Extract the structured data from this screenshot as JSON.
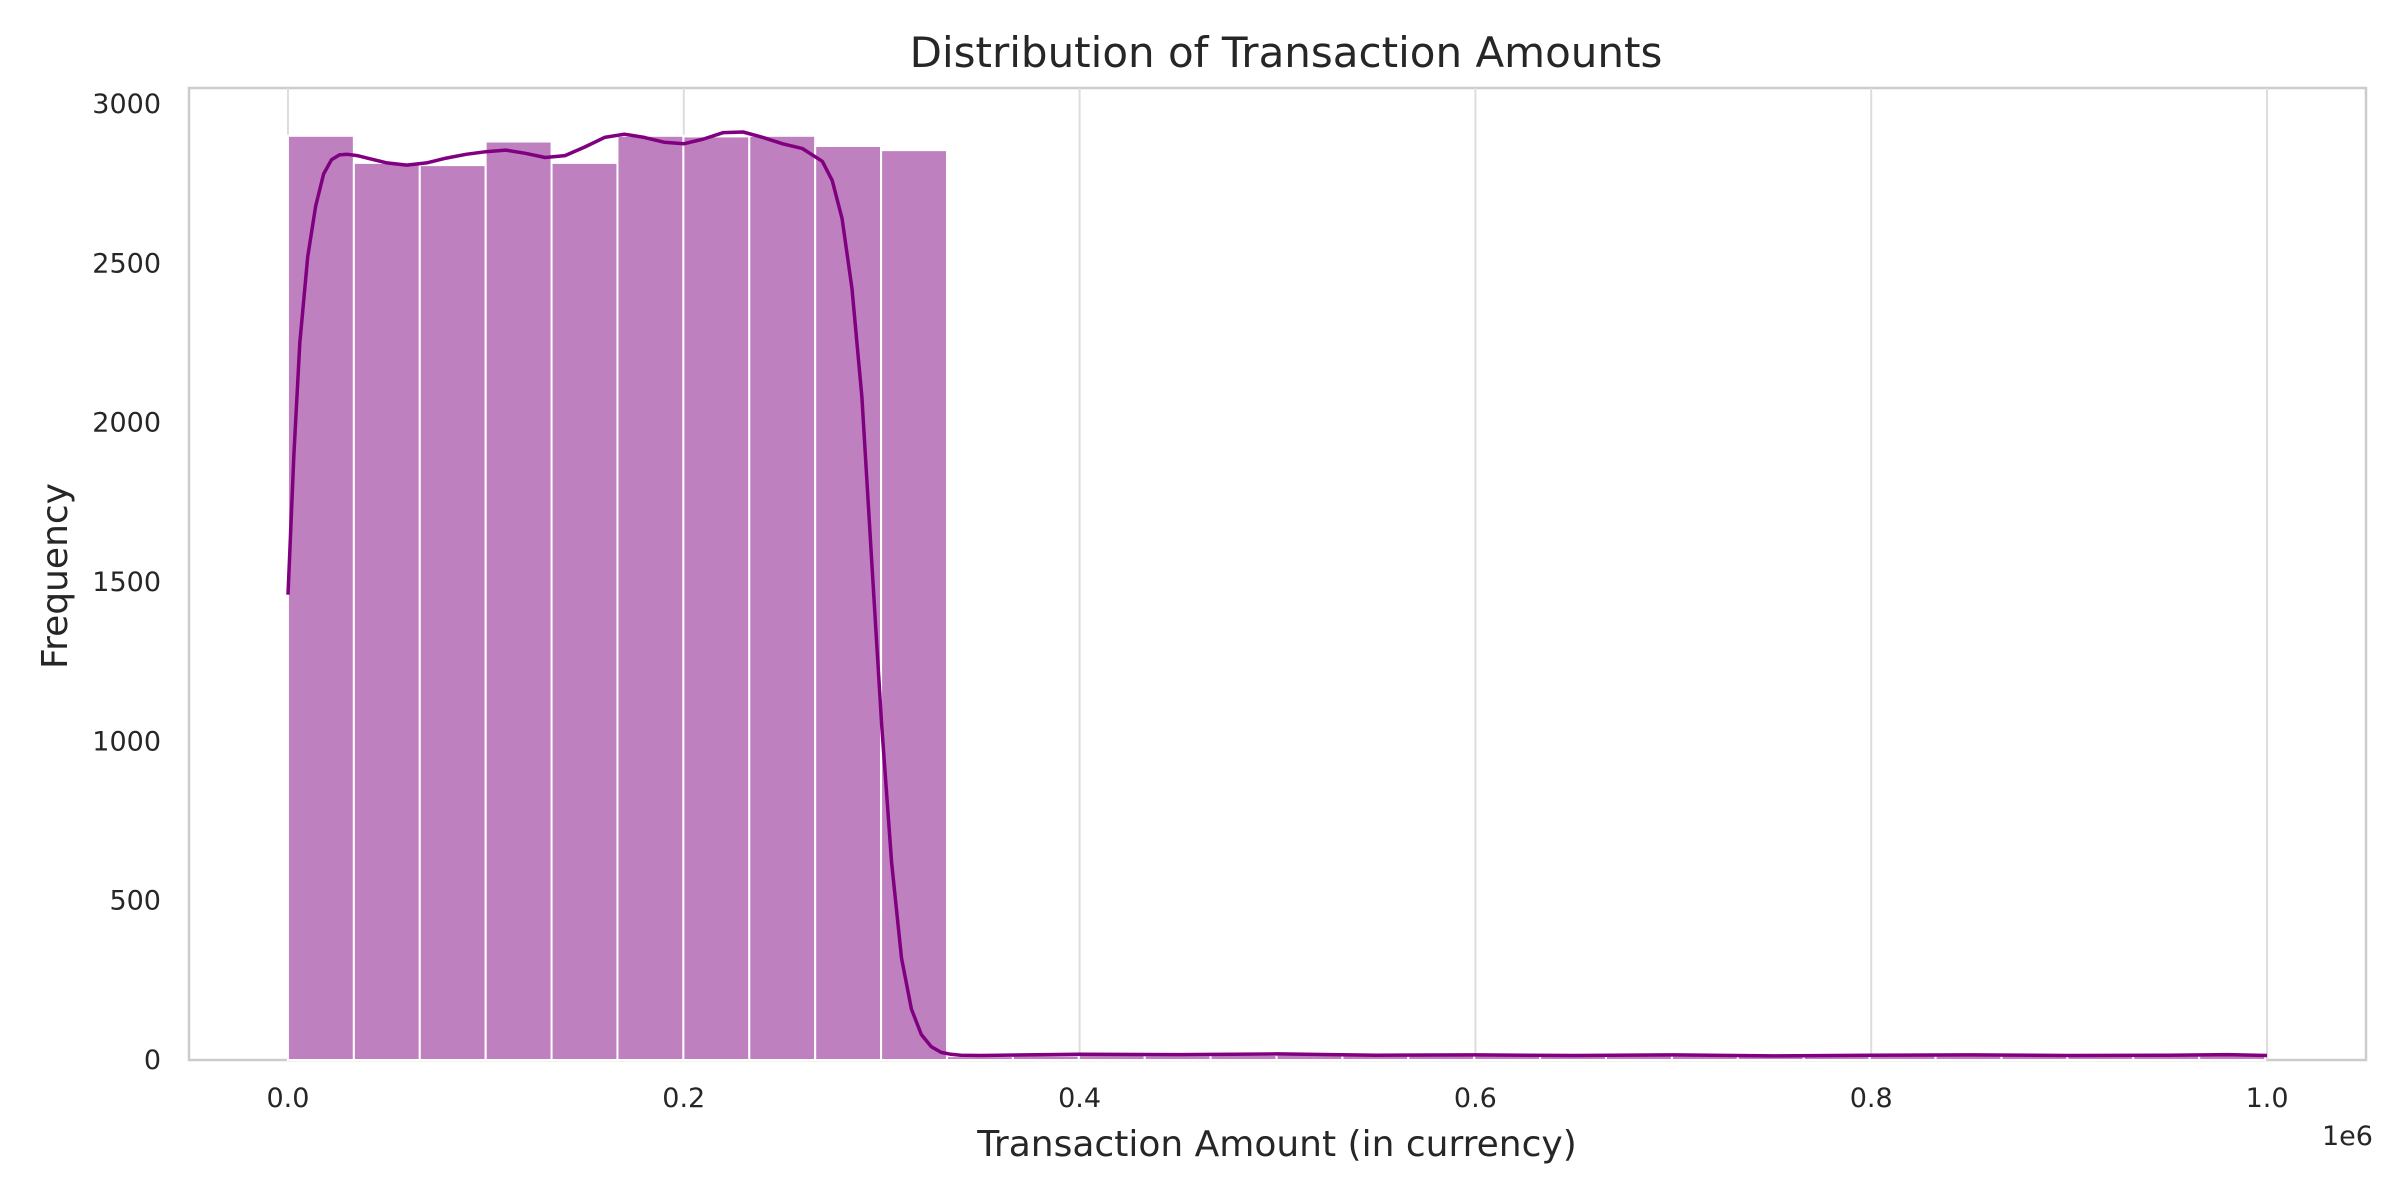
{
  "chart_data": {
    "type": "bar",
    "title": "Distribution of Transaction Amounts",
    "xlabel": "Transaction Amount (in currency)",
    "ylabel": "Frequency",
    "x_offset_text": "1e6",
    "xlim": [
      -0.05,
      1.05
    ],
    "ylim": [
      0,
      3050
    ],
    "x_ticks": [
      0.0,
      0.2,
      0.4,
      0.6,
      0.8,
      1.0
    ],
    "x_tick_labels": [
      "0.0",
      "0.2",
      "0.4",
      "0.6",
      "0.8",
      "1.0"
    ],
    "y_ticks": [
      0,
      500,
      1000,
      1500,
      2000,
      2500,
      3000
    ],
    "y_tick_labels": [
      "0",
      "500",
      "1000",
      "1500",
      "2000",
      "2500",
      "3000"
    ],
    "grid": "vertical",
    "bar_color": "#bf80bf",
    "line_color": "#800080",
    "bins": {
      "start": 0.0,
      "width": 0.0333,
      "counts": [
        2900,
        2815,
        2808,
        2882,
        2815,
        2900,
        2898,
        2900,
        2868,
        2855,
        12,
        14,
        16,
        15,
        16,
        17,
        15,
        16,
        15,
        14,
        15,
        14,
        15,
        16,
        15,
        16,
        15,
        14,
        15,
        16
      ]
    },
    "kde": {
      "x": [
        0.0,
        0.003,
        0.006,
        0.01,
        0.014,
        0.018,
        0.022,
        0.026,
        0.03,
        0.035,
        0.04,
        0.05,
        0.06,
        0.07,
        0.08,
        0.09,
        0.1,
        0.11,
        0.12,
        0.13,
        0.14,
        0.15,
        0.16,
        0.17,
        0.18,
        0.19,
        0.2,
        0.21,
        0.22,
        0.23,
        0.24,
        0.25,
        0.26,
        0.27,
        0.275,
        0.28,
        0.285,
        0.29,
        0.295,
        0.3,
        0.305,
        0.31,
        0.315,
        0.32,
        0.325,
        0.33,
        0.335,
        0.34,
        0.35,
        0.36,
        0.4,
        0.45,
        0.5,
        0.55,
        0.6,
        0.65,
        0.7,
        0.75,
        0.8,
        0.85,
        0.9,
        0.95,
        0.98,
        1.0
      ],
      "y": [
        1460,
        1900,
        2250,
        2520,
        2680,
        2780,
        2825,
        2840,
        2842,
        2838,
        2830,
        2815,
        2808,
        2815,
        2830,
        2842,
        2850,
        2855,
        2845,
        2832,
        2838,
        2865,
        2895,
        2905,
        2895,
        2880,
        2875,
        2890,
        2910,
        2912,
        2895,
        2875,
        2860,
        2820,
        2760,
        2640,
        2420,
        2080,
        1560,
        1050,
        620,
        320,
        160,
        80,
        42,
        24,
        18,
        15,
        14,
        15,
        18,
        17,
        19,
        15,
        16,
        14,
        16,
        13,
        15,
        16,
        14,
        15,
        17,
        14
      ]
    }
  }
}
